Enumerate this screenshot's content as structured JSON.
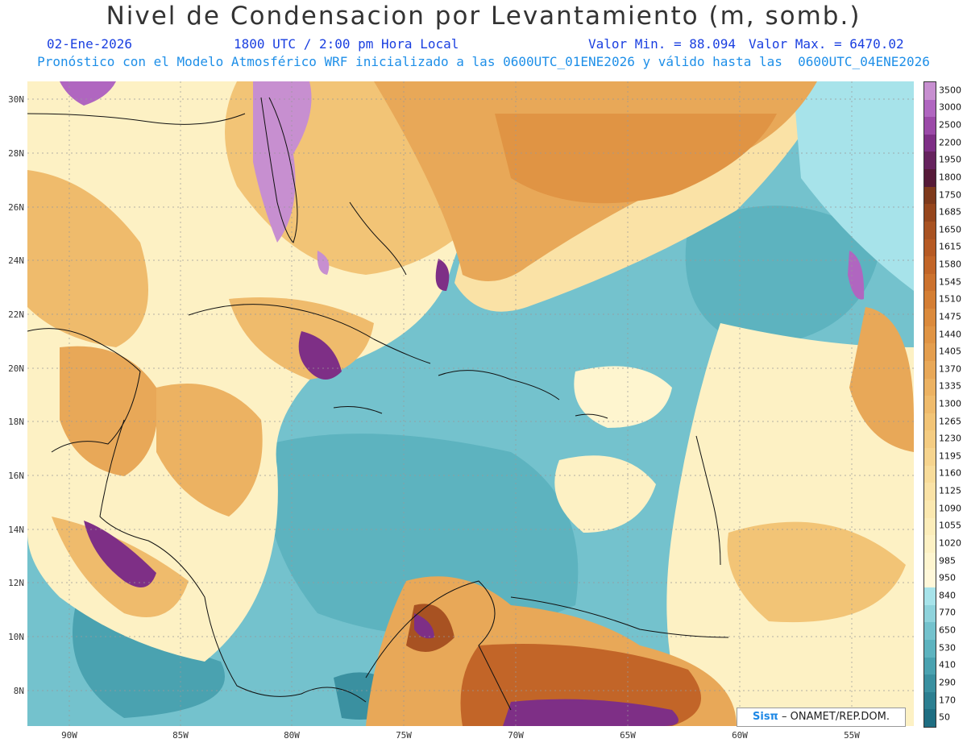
{
  "header": {
    "title": "Nivel de Condensacion por Levantamiento (m, somb.)",
    "date": "02-Ene-2026",
    "time": "1800 UTC / 2:00 pm Hora Local",
    "min": "Valor Min. = 88.094",
    "max": "Valor Max. = 6470.02",
    "model_line": "Pronóstico con el Modelo Atmosférico WRF inicializado a las 0600UTC_01ENE2026 y válido hasta las  0600UTC_04ENE2026"
  },
  "lat_labels": [
    "30N",
    "28N",
    "26N",
    "24N",
    "22N",
    "20N",
    "18N",
    "16N",
    "14N",
    "12N",
    "10N",
    "8N"
  ],
  "lon_labels": [
    "90W",
    "85W",
    "80W",
    "75W",
    "70W",
    "65W",
    "60W",
    "55W"
  ],
  "colorbar": {
    "levels": [
      "3500",
      "3000",
      "2500",
      "2200",
      "1950",
      "1800",
      "1750",
      "1685",
      "1650",
      "1615",
      "1580",
      "1545",
      "1510",
      "1475",
      "1440",
      "1405",
      "1370",
      "1335",
      "1300",
      "1265",
      "1230",
      "1195",
      "1160",
      "1125",
      "1090",
      "1055",
      "1020",
      "985",
      "950",
      "840",
      "770",
      "650",
      "530",
      "410",
      "290",
      "170",
      "50"
    ],
    "colors": [
      "#c78fd0",
      "#b066c0",
      "#9b4aa8",
      "#7e2f86",
      "#66235e",
      "#561a38",
      "#7e3a1c",
      "#96461d",
      "#a85222",
      "#b65a24",
      "#c26528",
      "#cc722e",
      "#d47e34",
      "#db8a3c",
      "#e09444",
      "#e49e4e",
      "#e8a858",
      "#ecb262",
      "#efbb6c",
      "#f2c476",
      "#f4cc82",
      "#f6d48e",
      "#f8dc9a",
      "#fae2a6",
      "#fbe8b0",
      "#fcedba",
      "#fdf1c4",
      "#fef5cf",
      "#fff8da",
      "#a7e3ea",
      "#8fd3dc",
      "#74c2cd",
      "#5db3bf",
      "#4aa2b0",
      "#3a90a0",
      "#2c7f91",
      "#1f6e82"
    ]
  },
  "credit": {
    "logo": "Sisπ",
    "text": " – ONAMET/REP.DOM."
  }
}
